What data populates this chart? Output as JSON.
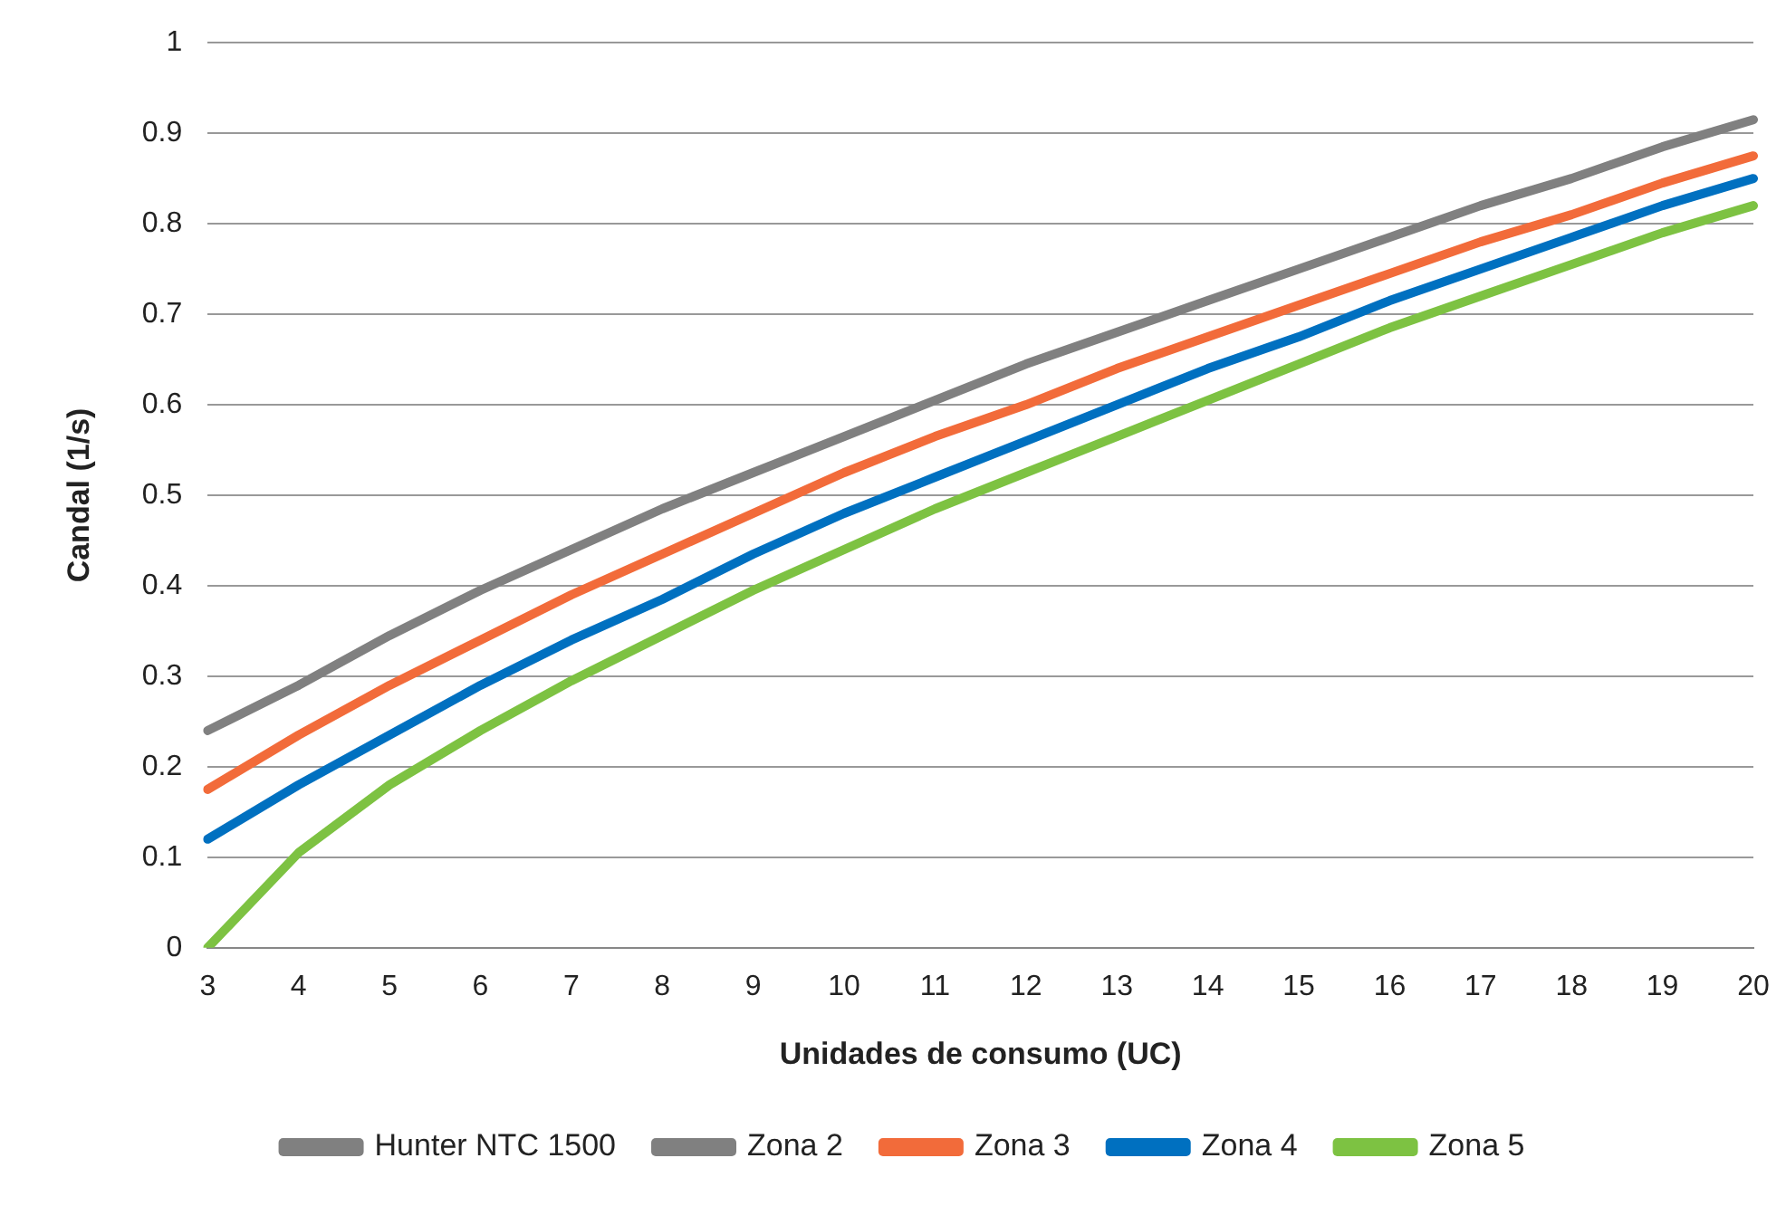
{
  "chart_data": {
    "type": "line",
    "xlabel": "Unidades de consumo (UC)",
    "ylabel": "Candal (1/s)",
    "categories": [
      "3",
      "4",
      "5",
      "6",
      "7",
      "8",
      "9",
      "10",
      "11",
      "12",
      "13",
      "14",
      "15",
      "16",
      "17",
      "18",
      "19",
      "20"
    ],
    "series": [
      {
        "name": "Hunter NTC 1500",
        "color": "#808080",
        "values": [
          0.24,
          0.29,
          0.345,
          0.395,
          0.44,
          0.485,
          0.525,
          0.565,
          0.605,
          0.645,
          0.68,
          0.715,
          0.75,
          0.785,
          0.82,
          0.85,
          0.885,
          0.915
        ]
      },
      {
        "name": "Zona 2",
        "color": "#808080",
        "values": [
          null,
          null,
          null,
          null,
          null,
          null,
          null,
          null,
          null,
          null,
          null,
          null,
          null,
          null,
          null,
          null,
          null,
          null
        ]
      },
      {
        "name": "Zona 3",
        "color": "#f26b3a",
        "values": [
          0.175,
          0.235,
          0.29,
          0.34,
          0.39,
          0.435,
          0.48,
          0.525,
          0.565,
          0.6,
          0.64,
          0.675,
          0.71,
          0.745,
          0.78,
          0.81,
          0.845,
          0.875
        ]
      },
      {
        "name": "Zona 4",
        "color": "#0070c0",
        "values": [
          0.12,
          0.18,
          0.235,
          0.29,
          0.34,
          0.385,
          0.435,
          0.48,
          0.52,
          0.56,
          0.6,
          0.64,
          0.675,
          0.715,
          0.75,
          0.785,
          0.82,
          0.85
        ]
      },
      {
        "name": "Zona 5",
        "color": "#7dc242",
        "values": [
          0,
          0.105,
          0.18,
          0.24,
          0.295,
          0.345,
          0.395,
          0.44,
          0.485,
          0.525,
          0.565,
          0.605,
          0.645,
          0.685,
          0.72,
          0.755,
          0.79,
          0.82
        ]
      }
    ],
    "ylim": [
      0,
      1
    ],
    "yticks": [
      0,
      0.1,
      0.2,
      0.3,
      0.4,
      0.5,
      0.6,
      0.7,
      0.8,
      0.9,
      1
    ],
    "grid": "y",
    "legend": "bottom",
    "marker": "none",
    "line_style": "solid"
  }
}
